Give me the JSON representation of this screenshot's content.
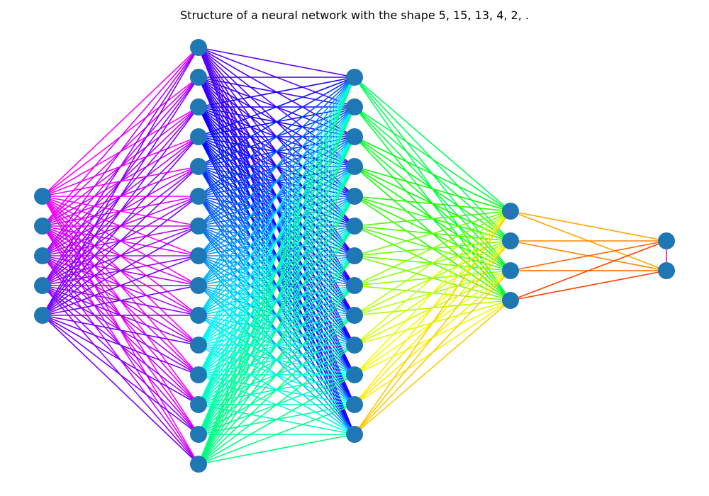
{
  "title": "Structure of a neural network with the shape 5, 15, 13, 4, 2, .",
  "network": {
    "layer_sizes": [
      5,
      15,
      13,
      4,
      2
    ],
    "node_color": "#1f77b4",
    "edge_colormap": "hsv rainbow (per source node)"
  }
}
